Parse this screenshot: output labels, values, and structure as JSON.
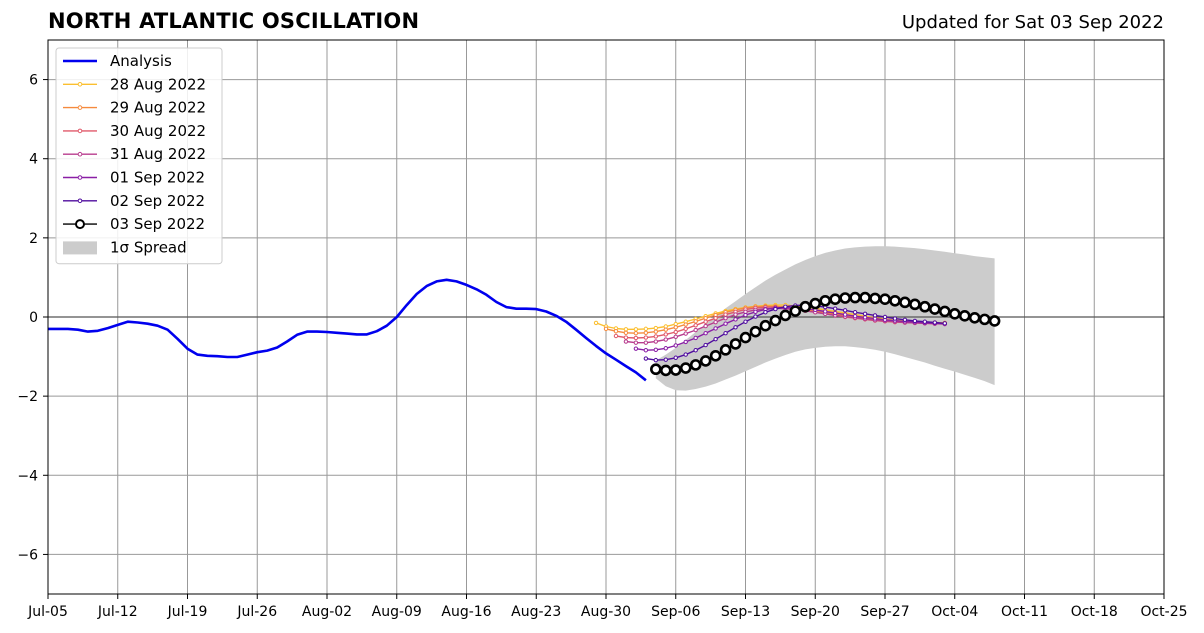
{
  "chart_data": {
    "type": "line",
    "title": "NORTH ATLANTIC OSCILLATION",
    "subtitle": "Updated for Sat 03 Sep 2022",
    "xlabel": "",
    "ylabel": "",
    "x_axis": {
      "type": "date",
      "range": [
        "2022-07-05",
        "2022-10-25"
      ],
      "ticks": [
        {
          "date": "2022-07-05",
          "label": "Jul-05"
        },
        {
          "date": "2022-07-12",
          "label": "Jul-12"
        },
        {
          "date": "2022-07-19",
          "label": "Jul-19"
        },
        {
          "date": "2022-07-26",
          "label": "Jul-26"
        },
        {
          "date": "2022-08-02",
          "label": "Aug-02"
        },
        {
          "date": "2022-08-09",
          "label": "Aug-09"
        },
        {
          "date": "2022-08-16",
          "label": "Aug-16"
        },
        {
          "date": "2022-08-23",
          "label": "Aug-23"
        },
        {
          "date": "2022-08-30",
          "label": "Aug-30"
        },
        {
          "date": "2022-09-06",
          "label": "Sep-06"
        },
        {
          "date": "2022-09-13",
          "label": "Sep-13"
        },
        {
          "date": "2022-09-20",
          "label": "Sep-20"
        },
        {
          "date": "2022-09-27",
          "label": "Sep-27"
        },
        {
          "date": "2022-10-04",
          "label": "Oct-04"
        },
        {
          "date": "2022-10-11",
          "label": "Oct-11"
        },
        {
          "date": "2022-10-18",
          "label": "Oct-18"
        },
        {
          "date": "2022-10-25",
          "label": "Oct-25"
        }
      ]
    },
    "y_axis": {
      "range": [
        -7,
        7
      ],
      "ticks": [
        {
          "value": 6,
          "label": "6"
        },
        {
          "value": 4,
          "label": "4"
        },
        {
          "value": 2,
          "label": "2"
        },
        {
          "value": 0,
          "label": "0"
        },
        {
          "value": -2,
          "label": "−2"
        },
        {
          "value": -4,
          "label": "−4"
        },
        {
          "value": -6,
          "label": "−6"
        }
      ]
    },
    "grid": true,
    "legend_position": "top-left",
    "legend": [
      {
        "label": "Analysis",
        "kind": "line",
        "color": "#0000ee"
      },
      {
        "label": "28 Aug 2022",
        "kind": "marker-line",
        "color": "#fbbf2f"
      },
      {
        "label": "29 Aug 2022",
        "kind": "marker-line",
        "color": "#f58a3e"
      },
      {
        "label": "30 Aug 2022",
        "kind": "marker-line",
        "color": "#e0596a"
      },
      {
        "label": "31 Aug 2022",
        "kind": "marker-line",
        "color": "#b83c8e"
      },
      {
        "label": "01 Sep 2022",
        "kind": "marker-line",
        "color": "#8a1fa6"
      },
      {
        "label": "02 Sep 2022",
        "kind": "marker-line",
        "color": "#4f0c9e"
      },
      {
        "label": "03 Sep 2022",
        "kind": "circle-line",
        "color": "#000000"
      },
      {
        "label": "1σ Spread",
        "kind": "patch",
        "color": "#cccccc"
      }
    ],
    "series": [
      {
        "name": "Analysis",
        "color": "#0000ee",
        "points": [
          [
            "2022-07-05",
            -0.3
          ],
          [
            "2022-07-06",
            -0.3
          ],
          [
            "2022-07-07",
            -0.3
          ],
          [
            "2022-07-08",
            -0.32
          ],
          [
            "2022-07-09",
            -0.37
          ],
          [
            "2022-07-10",
            -0.35
          ],
          [
            "2022-07-11",
            -0.28
          ],
          [
            "2022-07-12",
            -0.2
          ],
          [
            "2022-07-13",
            -0.12
          ],
          [
            "2022-07-14",
            -0.14
          ],
          [
            "2022-07-15",
            -0.17
          ],
          [
            "2022-07-16",
            -0.22
          ],
          [
            "2022-07-17",
            -0.32
          ],
          [
            "2022-07-18",
            -0.55
          ],
          [
            "2022-07-19",
            -0.8
          ],
          [
            "2022-07-20",
            -0.95
          ],
          [
            "2022-07-21",
            -0.98
          ],
          [
            "2022-07-22",
            -0.99
          ],
          [
            "2022-07-23",
            -1.01
          ],
          [
            "2022-07-24",
            -1.01
          ],
          [
            "2022-07-25",
            -0.95
          ],
          [
            "2022-07-26",
            -0.89
          ],
          [
            "2022-07-27",
            -0.85
          ],
          [
            "2022-07-28",
            -0.77
          ],
          [
            "2022-07-29",
            -0.62
          ],
          [
            "2022-07-30",
            -0.45
          ],
          [
            "2022-07-31",
            -0.37
          ],
          [
            "2022-08-01",
            -0.37
          ],
          [
            "2022-08-02",
            -0.38
          ],
          [
            "2022-08-03",
            -0.4
          ],
          [
            "2022-08-04",
            -0.42
          ],
          [
            "2022-08-05",
            -0.44
          ],
          [
            "2022-08-06",
            -0.44
          ],
          [
            "2022-08-07",
            -0.36
          ],
          [
            "2022-08-08",
            -0.22
          ],
          [
            "2022-08-09",
            0.0
          ],
          [
            "2022-08-10",
            0.3
          ],
          [
            "2022-08-11",
            0.58
          ],
          [
            "2022-08-12",
            0.78
          ],
          [
            "2022-08-13",
            0.9
          ],
          [
            "2022-08-14",
            0.94
          ],
          [
            "2022-08-15",
            0.9
          ],
          [
            "2022-08-16",
            0.81
          ],
          [
            "2022-08-17",
            0.7
          ],
          [
            "2022-08-18",
            0.56
          ],
          [
            "2022-08-19",
            0.38
          ],
          [
            "2022-08-20",
            0.25
          ],
          [
            "2022-08-21",
            0.21
          ],
          [
            "2022-08-22",
            0.21
          ],
          [
            "2022-08-23",
            0.2
          ],
          [
            "2022-08-24",
            0.14
          ],
          [
            "2022-08-25",
            0.03
          ],
          [
            "2022-08-26",
            -0.12
          ],
          [
            "2022-08-27",
            -0.32
          ],
          [
            "2022-08-28",
            -0.53
          ],
          [
            "2022-08-29",
            -0.73
          ],
          [
            "2022-08-30",
            -0.92
          ],
          [
            "2022-08-31",
            -1.08
          ],
          [
            "2022-09-01",
            -1.24
          ],
          [
            "2022-09-02",
            -1.4
          ],
          [
            "2022-09-03",
            -1.6
          ]
        ]
      },
      {
        "name": "28 Aug 2022",
        "color": "#fbbf2f",
        "start": "2022-08-29",
        "values": [
          -0.15,
          -0.24,
          -0.29,
          -0.31,
          -0.31,
          -0.3,
          -0.28,
          -0.24,
          -0.18,
          -0.12,
          -0.05,
          0.02,
          0.09,
          0.15,
          0.2,
          0.24,
          0.27,
          0.29,
          0.3,
          0.3,
          0.28,
          0.25,
          0.22,
          0.18,
          0.14,
          0.1,
          0.06,
          0.02,
          -0.02,
          -0.05,
          -0.08,
          -0.1,
          -0.12,
          -0.13,
          -0.14,
          -0.15
        ]
      },
      {
        "name": "29 Aug 2022",
        "color": "#f58a3e",
        "start": "2022-08-30",
        "values": [
          -0.3,
          -0.36,
          -0.4,
          -0.41,
          -0.4,
          -0.37,
          -0.32,
          -0.26,
          -0.19,
          -0.11,
          -0.03,
          0.05,
          0.12,
          0.18,
          0.23,
          0.26,
          0.27,
          0.27,
          0.25,
          0.22,
          0.19,
          0.15,
          0.11,
          0.07,
          0.03,
          -0.01,
          -0.04,
          -0.07,
          -0.09,
          -0.11,
          -0.12,
          -0.13,
          -0.14,
          -0.15,
          -0.15
        ]
      },
      {
        "name": "30 Aug 2022",
        "color": "#e0596a",
        "start": "2022-08-31",
        "values": [
          -0.48,
          -0.52,
          -0.53,
          -0.52,
          -0.49,
          -0.44,
          -0.38,
          -0.3,
          -0.21,
          -0.12,
          -0.03,
          0.06,
          0.13,
          0.19,
          0.23,
          0.25,
          0.25,
          0.23,
          0.2,
          0.16,
          0.12,
          0.08,
          0.04,
          0.0,
          -0.03,
          -0.06,
          -0.09,
          -0.11,
          -0.13,
          -0.14,
          -0.15,
          -0.16,
          -0.17,
          -0.17
        ]
      },
      {
        "name": "31 Aug 2022",
        "color": "#b83c8e",
        "start": "2022-09-01",
        "values": [
          -0.62,
          -0.65,
          -0.65,
          -0.62,
          -0.57,
          -0.5,
          -0.42,
          -0.33,
          -0.23,
          -0.13,
          -0.03,
          0.06,
          0.13,
          0.18,
          0.21,
          0.22,
          0.21,
          0.19,
          0.16,
          0.12,
          0.08,
          0.04,
          0.01,
          -0.02,
          -0.05,
          -0.08,
          -0.1,
          -0.12,
          -0.14,
          -0.15,
          -0.16,
          -0.17,
          -0.18
        ]
      },
      {
        "name": "01 Sep 2022",
        "color": "#8a1fa6",
        "start": "2022-09-02",
        "values": [
          -0.8,
          -0.84,
          -0.83,
          -0.79,
          -0.72,
          -0.63,
          -0.53,
          -0.41,
          -0.29,
          -0.17,
          -0.06,
          0.05,
          0.13,
          0.19,
          0.23,
          0.24,
          0.23,
          0.21,
          0.18,
          0.14,
          0.1,
          0.06,
          0.02,
          -0.01,
          -0.04,
          -0.07,
          -0.09,
          -0.11,
          -0.13,
          -0.15,
          -0.16,
          -0.17
        ]
      },
      {
        "name": "02 Sep 2022",
        "color": "#4f0c9e",
        "start": "2022-09-03",
        "values": [
          -1.05,
          -1.09,
          -1.08,
          -1.03,
          -0.95,
          -0.84,
          -0.71,
          -0.56,
          -0.41,
          -0.26,
          -0.12,
          0.01,
          0.12,
          0.2,
          0.26,
          0.29,
          0.3,
          0.28,
          0.25,
          0.21,
          0.17,
          0.12,
          0.08,
          0.04,
          0.0,
          -0.04,
          -0.07,
          -0.1,
          -0.12,
          -0.14,
          -0.16
        ]
      },
      {
        "name": "03 Sep 2022",
        "color": "#000000",
        "start": "2022-09-04",
        "values": [
          -1.32,
          -1.35,
          -1.34,
          -1.29,
          -1.21,
          -1.11,
          -0.98,
          -0.83,
          -0.68,
          -0.52,
          -0.37,
          -0.22,
          -0.09,
          0.04,
          0.15,
          0.26,
          0.34,
          0.41,
          0.45,
          0.48,
          0.49,
          0.49,
          0.47,
          0.45,
          0.41,
          0.37,
          0.32,
          0.26,
          0.2,
          0.14,
          0.08,
          0.03,
          -0.02,
          -0.06,
          -0.1
        ]
      }
    ],
    "spread": {
      "name": "1σ Spread",
      "color": "#cccccc",
      "start": "2022-09-04",
      "upper": [
        -1.1,
        -0.95,
        -0.78,
        -0.58,
        -0.38,
        -0.18,
        0.02,
        0.22,
        0.4,
        0.58,
        0.75,
        0.92,
        1.07,
        1.2,
        1.33,
        1.44,
        1.54,
        1.62,
        1.68,
        1.73,
        1.76,
        1.78,
        1.79,
        1.79,
        1.78,
        1.76,
        1.74,
        1.71,
        1.68,
        1.65,
        1.61,
        1.58,
        1.54,
        1.51,
        1.48
      ],
      "lower": [
        -1.55,
        -1.75,
        -1.85,
        -1.86,
        -1.82,
        -1.76,
        -1.68,
        -1.58,
        -1.48,
        -1.37,
        -1.26,
        -1.15,
        -1.05,
        -0.96,
        -0.88,
        -0.82,
        -0.78,
        -0.75,
        -0.74,
        -0.74,
        -0.76,
        -0.79,
        -0.83,
        -0.88,
        -0.94,
        -1.01,
        -1.08,
        -1.15,
        -1.23,
        -1.31,
        -1.38,
        -1.46,
        -1.54,
        -1.62,
        -1.72
      ]
    }
  }
}
